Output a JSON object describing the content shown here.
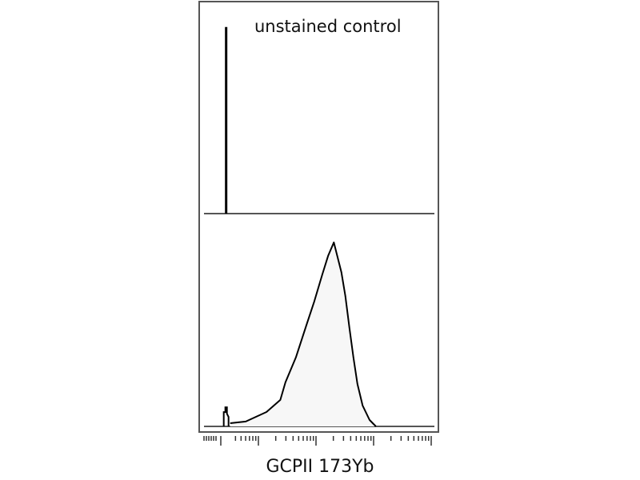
{
  "chart_data": [
    {
      "type": "area",
      "panel": "top",
      "annotation": "unstained control",
      "x_scale": "log",
      "x": [
        0.44
      ],
      "y": [
        88
      ],
      "ylim": [
        0,
        100
      ],
      "xlim": [
        0.0,
        4.15
      ],
      "grid": false,
      "line_color": "#000000",
      "fill_color": "#f7f7f7"
    },
    {
      "type": "area",
      "panel": "bottom",
      "xlabel": "GCPII 173Yb",
      "x_scale": "log",
      "spike": {
        "x": 0.44,
        "y": 9
      },
      "x": [
        0.51,
        0.78,
        1.14,
        1.38,
        1.47,
        1.65,
        1.83,
        1.97,
        2.11,
        2.21,
        2.31,
        2.44,
        2.51,
        2.58,
        2.65,
        2.72,
        2.81,
        2.93,
        3.04
      ],
      "y": [
        1.5,
        2.3,
        6.8,
        12.5,
        20.8,
        32.5,
        47.5,
        58.9,
        71.7,
        80.4,
        86.8,
        72.8,
        61.5,
        46.4,
        32.5,
        20.0,
        9.8,
        3.0,
        0
      ],
      "ylim": [
        0,
        100
      ],
      "xlim": [
        0.0,
        4.15
      ],
      "grid": false,
      "line_color": "#000000",
      "fill_color": "#f7f7f7"
    }
  ]
}
